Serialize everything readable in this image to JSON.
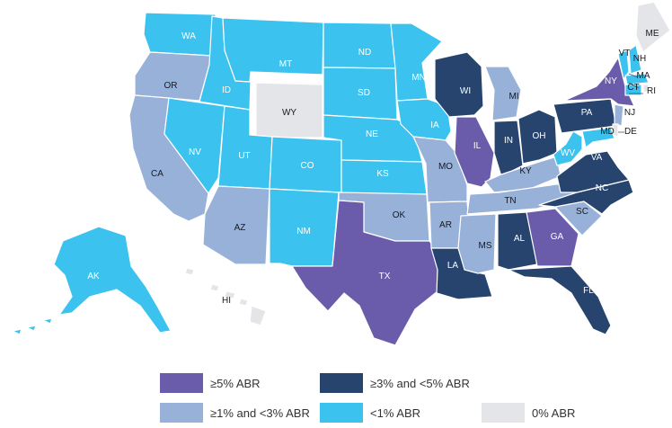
{
  "colors": {
    "ge5": "#6a5cab",
    "3to5": "#26446e",
    "1to3": "#98b1d9",
    "lt1": "#3cc2ee",
    "zero": "#e4e5e9",
    "label_light": "#ffffff",
    "label_dark": "#1a1a1a"
  },
  "legend": [
    {
      "key": "ge5",
      "label": "≥5% ABR"
    },
    {
      "key": "3to5",
      "label": "≥3% and <5% ABR"
    },
    {
      "key": "1to3",
      "label": "≥1% and <3% ABR"
    },
    {
      "key": "lt1",
      "label": "<1% ABR"
    },
    {
      "key": "zero",
      "label": "0% ABR"
    }
  ],
  "states": [
    {
      "abbr": "WA",
      "category": "lt1"
    },
    {
      "abbr": "OR",
      "category": "1to3"
    },
    {
      "abbr": "CA",
      "category": "1to3"
    },
    {
      "abbr": "ID",
      "category": "lt1"
    },
    {
      "abbr": "NV",
      "category": "lt1"
    },
    {
      "abbr": "MT",
      "category": "lt1"
    },
    {
      "abbr": "WY",
      "category": "zero"
    },
    {
      "abbr": "UT",
      "category": "lt1"
    },
    {
      "abbr": "AZ",
      "category": "1to3"
    },
    {
      "abbr": "CO",
      "category": "lt1"
    },
    {
      "abbr": "NM",
      "category": "lt1"
    },
    {
      "abbr": "ND",
      "category": "lt1"
    },
    {
      "abbr": "SD",
      "category": "lt1"
    },
    {
      "abbr": "NE",
      "category": "lt1"
    },
    {
      "abbr": "KS",
      "category": "lt1"
    },
    {
      "abbr": "OK",
      "category": "1to3"
    },
    {
      "abbr": "TX",
      "category": "ge5"
    },
    {
      "abbr": "MN",
      "category": "lt1"
    },
    {
      "abbr": "IA",
      "category": "lt1"
    },
    {
      "abbr": "MO",
      "category": "1to3"
    },
    {
      "abbr": "AR",
      "category": "1to3"
    },
    {
      "abbr": "LA",
      "category": "3to5"
    },
    {
      "abbr": "WI",
      "category": "3to5"
    },
    {
      "abbr": "IL",
      "category": "ge5"
    },
    {
      "abbr": "MI",
      "category": "1to3"
    },
    {
      "abbr": "IN",
      "category": "3to5"
    },
    {
      "abbr": "OH",
      "category": "3to5"
    },
    {
      "abbr": "KY",
      "category": "1to3"
    },
    {
      "abbr": "TN",
      "category": "1to3"
    },
    {
      "abbr": "MS",
      "category": "1to3"
    },
    {
      "abbr": "AL",
      "category": "3to5"
    },
    {
      "abbr": "GA",
      "category": "ge5"
    },
    {
      "abbr": "FL",
      "category": "3to5"
    },
    {
      "abbr": "SC",
      "category": "1to3"
    },
    {
      "abbr": "NC",
      "category": "3to5"
    },
    {
      "abbr": "VA",
      "category": "3to5"
    },
    {
      "abbr": "WV",
      "category": "lt1"
    },
    {
      "abbr": "PA",
      "category": "3to5"
    },
    {
      "abbr": "NY",
      "category": "ge5"
    },
    {
      "abbr": "ME",
      "category": "zero"
    },
    {
      "abbr": "VT",
      "category": "lt1"
    },
    {
      "abbr": "NH",
      "category": "lt1"
    },
    {
      "abbr": "MA",
      "category": "lt1"
    },
    {
      "abbr": "RI",
      "category": "zero"
    },
    {
      "abbr": "CT",
      "category": "lt1"
    },
    {
      "abbr": "NJ",
      "category": "1to3"
    },
    {
      "abbr": "DE",
      "category": "zero"
    },
    {
      "abbr": "MD",
      "category": "lt1"
    },
    {
      "abbr": "AK",
      "category": "lt1"
    },
    {
      "abbr": "HI",
      "category": "zero"
    }
  ]
}
